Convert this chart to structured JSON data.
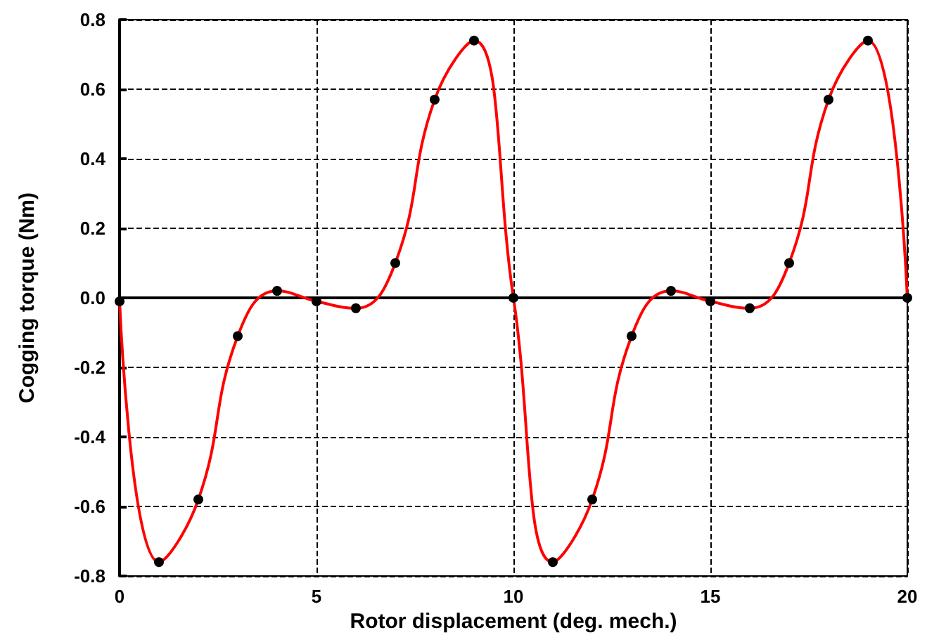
{
  "chart_data": {
    "type": "line",
    "xlabel": "Rotor displacement (deg. mech.)",
    "ylabel": "Cogging torque (Nm)",
    "x": [
      0,
      1,
      2,
      3,
      4,
      5,
      6,
      7,
      8,
      9,
      10,
      11,
      12,
      13,
      14,
      15,
      16,
      17,
      18,
      19,
      20
    ],
    "series": [
      {
        "color": "#ff0000",
        "values": [
          -0.01,
          -0.76,
          -0.58,
          -0.11,
          0.02,
          -0.01,
          -0.03,
          0.1,
          0.57,
          0.74,
          0,
          -0.76,
          -0.58,
          -0.11,
          0.02,
          -0.01,
          -0.03,
          0.1,
          0.57,
          0.74,
          0
        ]
      }
    ],
    "xlim": [
      0,
      20
    ],
    "xticks": [
      0,
      5,
      10,
      15,
      20
    ],
    "ylim": [
      -0.8,
      0.8
    ],
    "yticks": [
      -0.8,
      -0.6,
      -0.4,
      -0.2,
      {
        "value": 0,
        "label": "0.0"
      },
      0.2,
      0.4,
      0.6,
      0.8
    ],
    "grid": true,
    "marker": "circle",
    "line_style": "solid"
  }
}
